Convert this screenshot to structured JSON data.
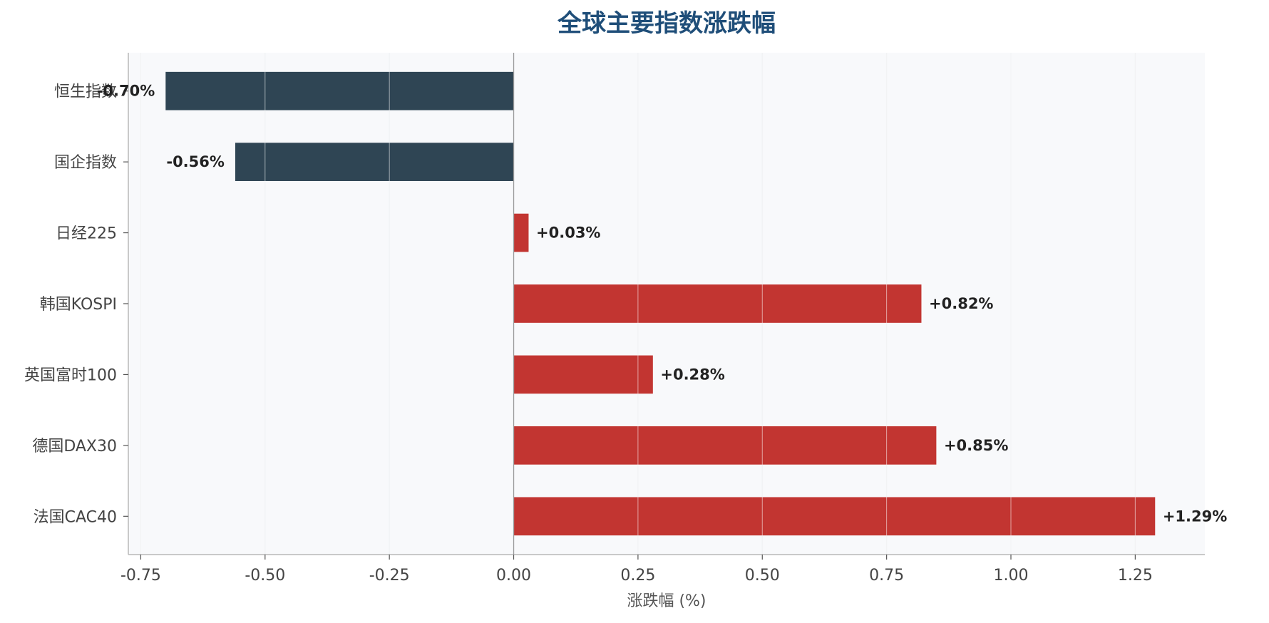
{
  "chart_data": {
    "type": "bar",
    "orientation": "horizontal",
    "title": "全球主要指数涨跌幅",
    "xlabel": "涨跌幅 (%)",
    "ylabel": "",
    "categories": [
      "恒生指数",
      "国企指数",
      "日经225",
      "韩国KOSPI",
      "英国富时100",
      "德国DAX30",
      "法国CAC40"
    ],
    "values": [
      -0.7,
      -0.56,
      0.03,
      0.82,
      0.28,
      0.85,
      1.29
    ],
    "value_labels": [
      "-0.70%",
      "-0.56%",
      "+0.03%",
      "+0.82%",
      "+0.28%",
      "+0.85%",
      "+1.29%"
    ],
    "xlim": [
      -0.775,
      1.39
    ],
    "xticks": [
      -0.75,
      -0.5,
      -0.25,
      0.0,
      0.25,
      0.5,
      0.75,
      1.0,
      1.25
    ],
    "xtick_labels": [
      "-0.75",
      "-0.50",
      "-0.25",
      "0.00",
      "0.25",
      "0.50",
      "0.75",
      "1.00",
      "1.25"
    ],
    "grid": "vertical",
    "legend": "none",
    "colors": {
      "positive": "#c23531",
      "negative": "#2f4554",
      "title": "#1f4e79",
      "plot_background": "#f8f9fb",
      "grid": "#e3e5e8",
      "axis": "#b8b8b8",
      "zero_line": "#9a9a9a"
    }
  }
}
